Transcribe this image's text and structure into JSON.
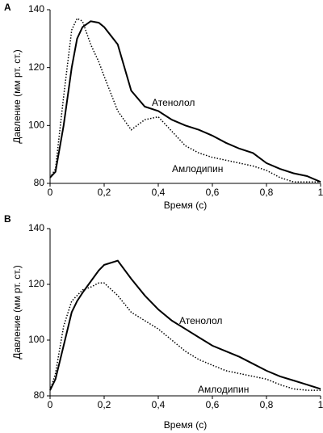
{
  "chart_data": [
    {
      "type": "line",
      "label": "A",
      "xlabel": "Время (с)",
      "ylabel": "Давление (мм рт. ст.)",
      "x": [
        0,
        0.02,
        0.05,
        0.08,
        0.1,
        0.12,
        0.15,
        0.18,
        0.2,
        0.25,
        0.3,
        0.35,
        0.4,
        0.45,
        0.5,
        0.55,
        0.6,
        0.65,
        0.7,
        0.75,
        0.8,
        0.85,
        0.9,
        0.95,
        1
      ],
      "series": [
        {
          "name": "Атенолол",
          "color": "#000000",
          "linestyle": "solid",
          "values": [
            82,
            84,
            100,
            120,
            130,
            134,
            136,
            135.5,
            134,
            128,
            112,
            106.5,
            105,
            102,
            100,
            98.5,
            96.5,
            94,
            92,
            90.5,
            87,
            85,
            83.5,
            82.5,
            80.5
          ]
        },
        {
          "name": "Амлодипин",
          "color": "#000000",
          "linestyle": "dotted",
          "values": [
            82,
            85,
            110,
            133,
            137,
            136,
            128,
            122,
            117,
            105,
            98.5,
            102,
            103,
            98,
            93,
            90.5,
            89,
            88,
            87,
            86,
            84.5,
            82,
            80.5,
            80.5,
            80.5
          ]
        }
      ],
      "xlim": [
        0,
        1
      ],
      "ylim": [
        80,
        140
      ],
      "xticks": [
        0,
        {
          "value": 0.2,
          "label": "0,2"
        },
        {
          "value": 0.4,
          "label": "0,4"
        },
        {
          "value": 0.6,
          "label": "0,6"
        },
        {
          "value": 0.8,
          "label": "0,8"
        },
        1
      ],
      "yticks": [
        80,
        100,
        120,
        140
      ],
      "grid": false
    },
    {
      "type": "line",
      "label": "B",
      "xlabel": "Время (с)",
      "ylabel": "Давление (мм рт. ст.)",
      "x": [
        0,
        0.02,
        0.05,
        0.08,
        0.1,
        0.12,
        0.15,
        0.18,
        0.2,
        0.25,
        0.3,
        0.35,
        0.4,
        0.45,
        0.5,
        0.55,
        0.6,
        0.65,
        0.7,
        0.75,
        0.8,
        0.85,
        0.9,
        0.95,
        1
      ],
      "series": [
        {
          "name": "Атенолол",
          "color": "#000000",
          "linestyle": "solid",
          "values": [
            82,
            86,
            98,
            110,
            114,
            117,
            121,
            125,
            127,
            128.5,
            122,
            116,
            111,
            107,
            104,
            101,
            98,
            96,
            94,
            91.5,
            89,
            87,
            85.5,
            84,
            82.5
          ]
        },
        {
          "name": "Амлодипин",
          "color": "#000000",
          "linestyle": "dotted",
          "values": [
            82,
            88,
            105,
            114,
            116,
            118,
            119,
            120.5,
            120.5,
            116,
            110,
            107,
            104,
            100,
            96,
            93,
            91,
            89,
            88,
            87,
            86,
            84,
            82.5,
            82,
            82
          ]
        }
      ],
      "xlim": [
        0,
        1
      ],
      "ylim": [
        80,
        140
      ],
      "xticks": [
        0,
        {
          "value": 0.2,
          "label": "0,2"
        },
        {
          "value": 0.4,
          "label": "0,4"
        },
        {
          "value": 0.6,
          "label": "0,6"
        },
        {
          "value": 0.8,
          "label": "0,8"
        },
        1
      ],
      "yticks": [
        80,
        100,
        120,
        140
      ],
      "grid": false
    }
  ]
}
